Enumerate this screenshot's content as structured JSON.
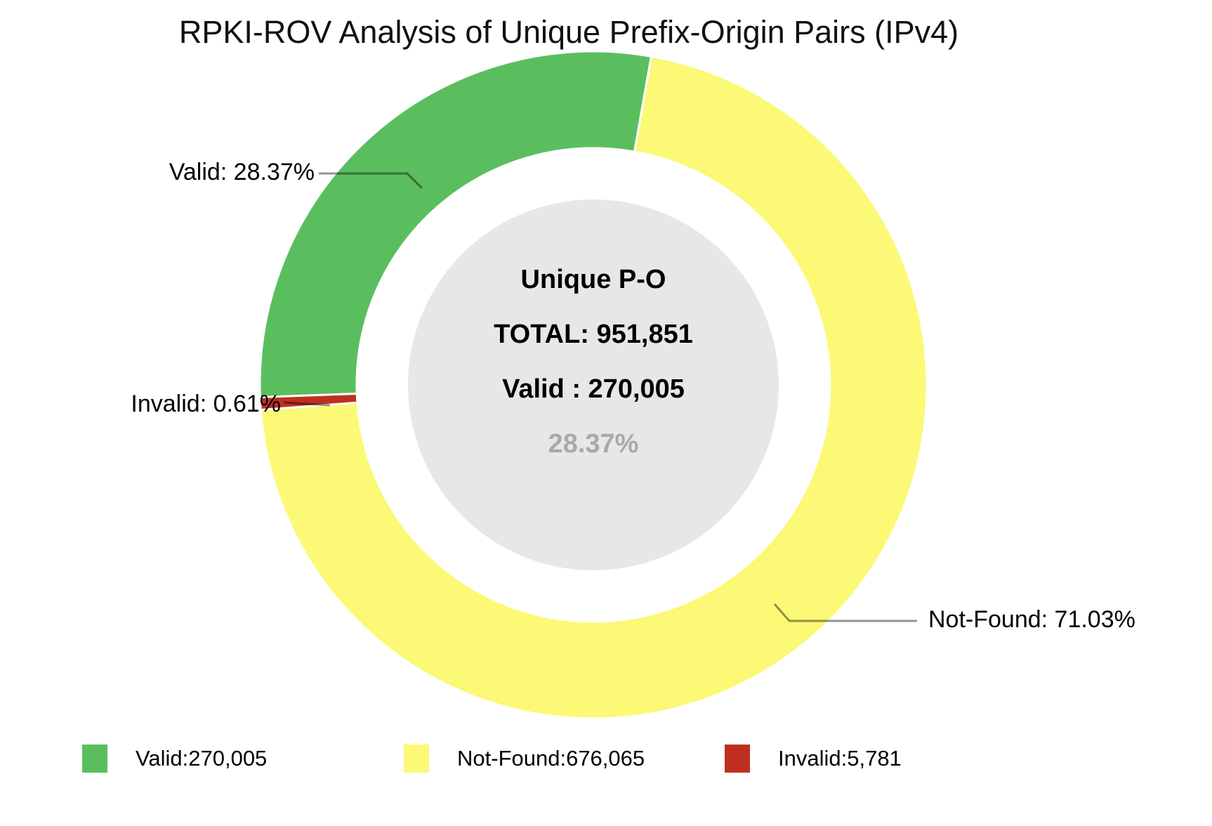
{
  "chart_data": {
    "type": "pie",
    "subtype": "donut",
    "title": "RPKI-ROV Analysis of Unique Prefix-Origin Pairs (IPv4)",
    "direction": "counterclockwise",
    "start_angle_deg": 80,
    "total": 951851,
    "slices": [
      {
        "name": "Valid",
        "value": 270005,
        "percent": 28.37,
        "color": "#5abe5f"
      },
      {
        "name": "Invalid",
        "value": 5781,
        "percent": 0.61,
        "color": "#bf2f1f"
      },
      {
        "name": "Not-Found",
        "value": 676065,
        "percent": 71.03,
        "color": "#fbf975"
      }
    ],
    "callouts": {
      "valid": "Valid: 28.37%",
      "invalid": "Invalid: 0.61%",
      "not_found": "Not-Found: 71.03%"
    },
    "center_text": {
      "line1": "Unique P-O",
      "line2": "TOTAL: 951,851",
      "line3": "Valid : 270,005",
      "line4": "28.37%",
      "line4_color": "#a9a9a9"
    },
    "legend": [
      {
        "label": "Valid:270,005",
        "color": "#5abe5f"
      },
      {
        "label": "Not-Found:676,065",
        "color": "#fbf975"
      },
      {
        "label": "Invalid:5,781",
        "color": "#bf2f1f"
      }
    ],
    "hole_fill": "#e7e7e7",
    "leader_line_color": "rgba(0,0,0,0.42)"
  }
}
